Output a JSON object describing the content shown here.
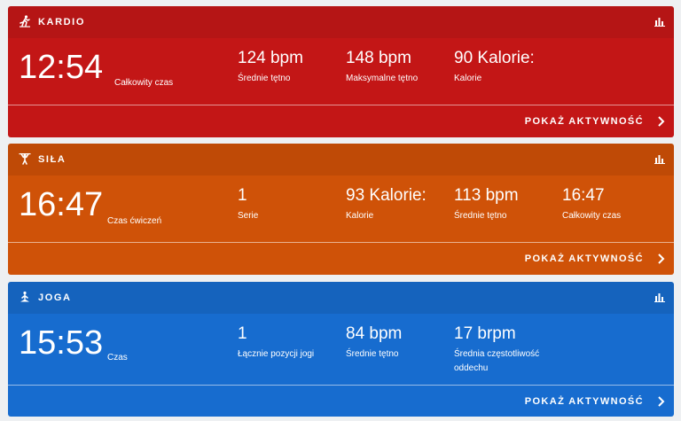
{
  "colors": {
    "kardio_header": "#b51515",
    "kardio_body": "#c31616",
    "sila_header": "#bf4a06",
    "sila_body": "#cf5208",
    "joga_header": "#1563bd",
    "joga_body": "#176ccf"
  },
  "cards": [
    {
      "title": "KARDIO",
      "icon": "running-icon",
      "main_value": "12:54",
      "main_label": "Całkowity czas",
      "stats": [
        {
          "value": "124 bpm",
          "label": "Średnie tętno"
        },
        {
          "value": "148 bpm",
          "label": "Maksymalne tętno"
        },
        {
          "value": "90 Kalorie:",
          "label": "Kalorie"
        }
      ],
      "link": "POKAŻ AKTYWNOŚĆ"
    },
    {
      "title": "SIŁA",
      "icon": "weightlifting-icon",
      "main_value": "16:47",
      "main_label": "Czas ćwiczeń",
      "stats": [
        {
          "value": "1",
          "label": "Serie"
        },
        {
          "value": "93 Kalorie:",
          "label": "Kalorie"
        },
        {
          "value": "113 bpm",
          "label": "Średnie tętno"
        },
        {
          "value": "16:47",
          "label": "Całkowity czas"
        }
      ],
      "link": "POKAŻ AKTYWNOŚĆ"
    },
    {
      "title": "JOGA",
      "icon": "yoga-icon",
      "main_value": "15:53",
      "main_label": "Czas",
      "stats": [
        {
          "value": "1",
          "label": "Łącznie pozycji jogi"
        },
        {
          "value": "84 bpm",
          "label": "Średnie tętno"
        },
        {
          "value": "17 brpm",
          "label": "Średnia częstotliwość oddechu"
        }
      ],
      "link": "POKAŻ AKTYWNOŚĆ"
    }
  ]
}
